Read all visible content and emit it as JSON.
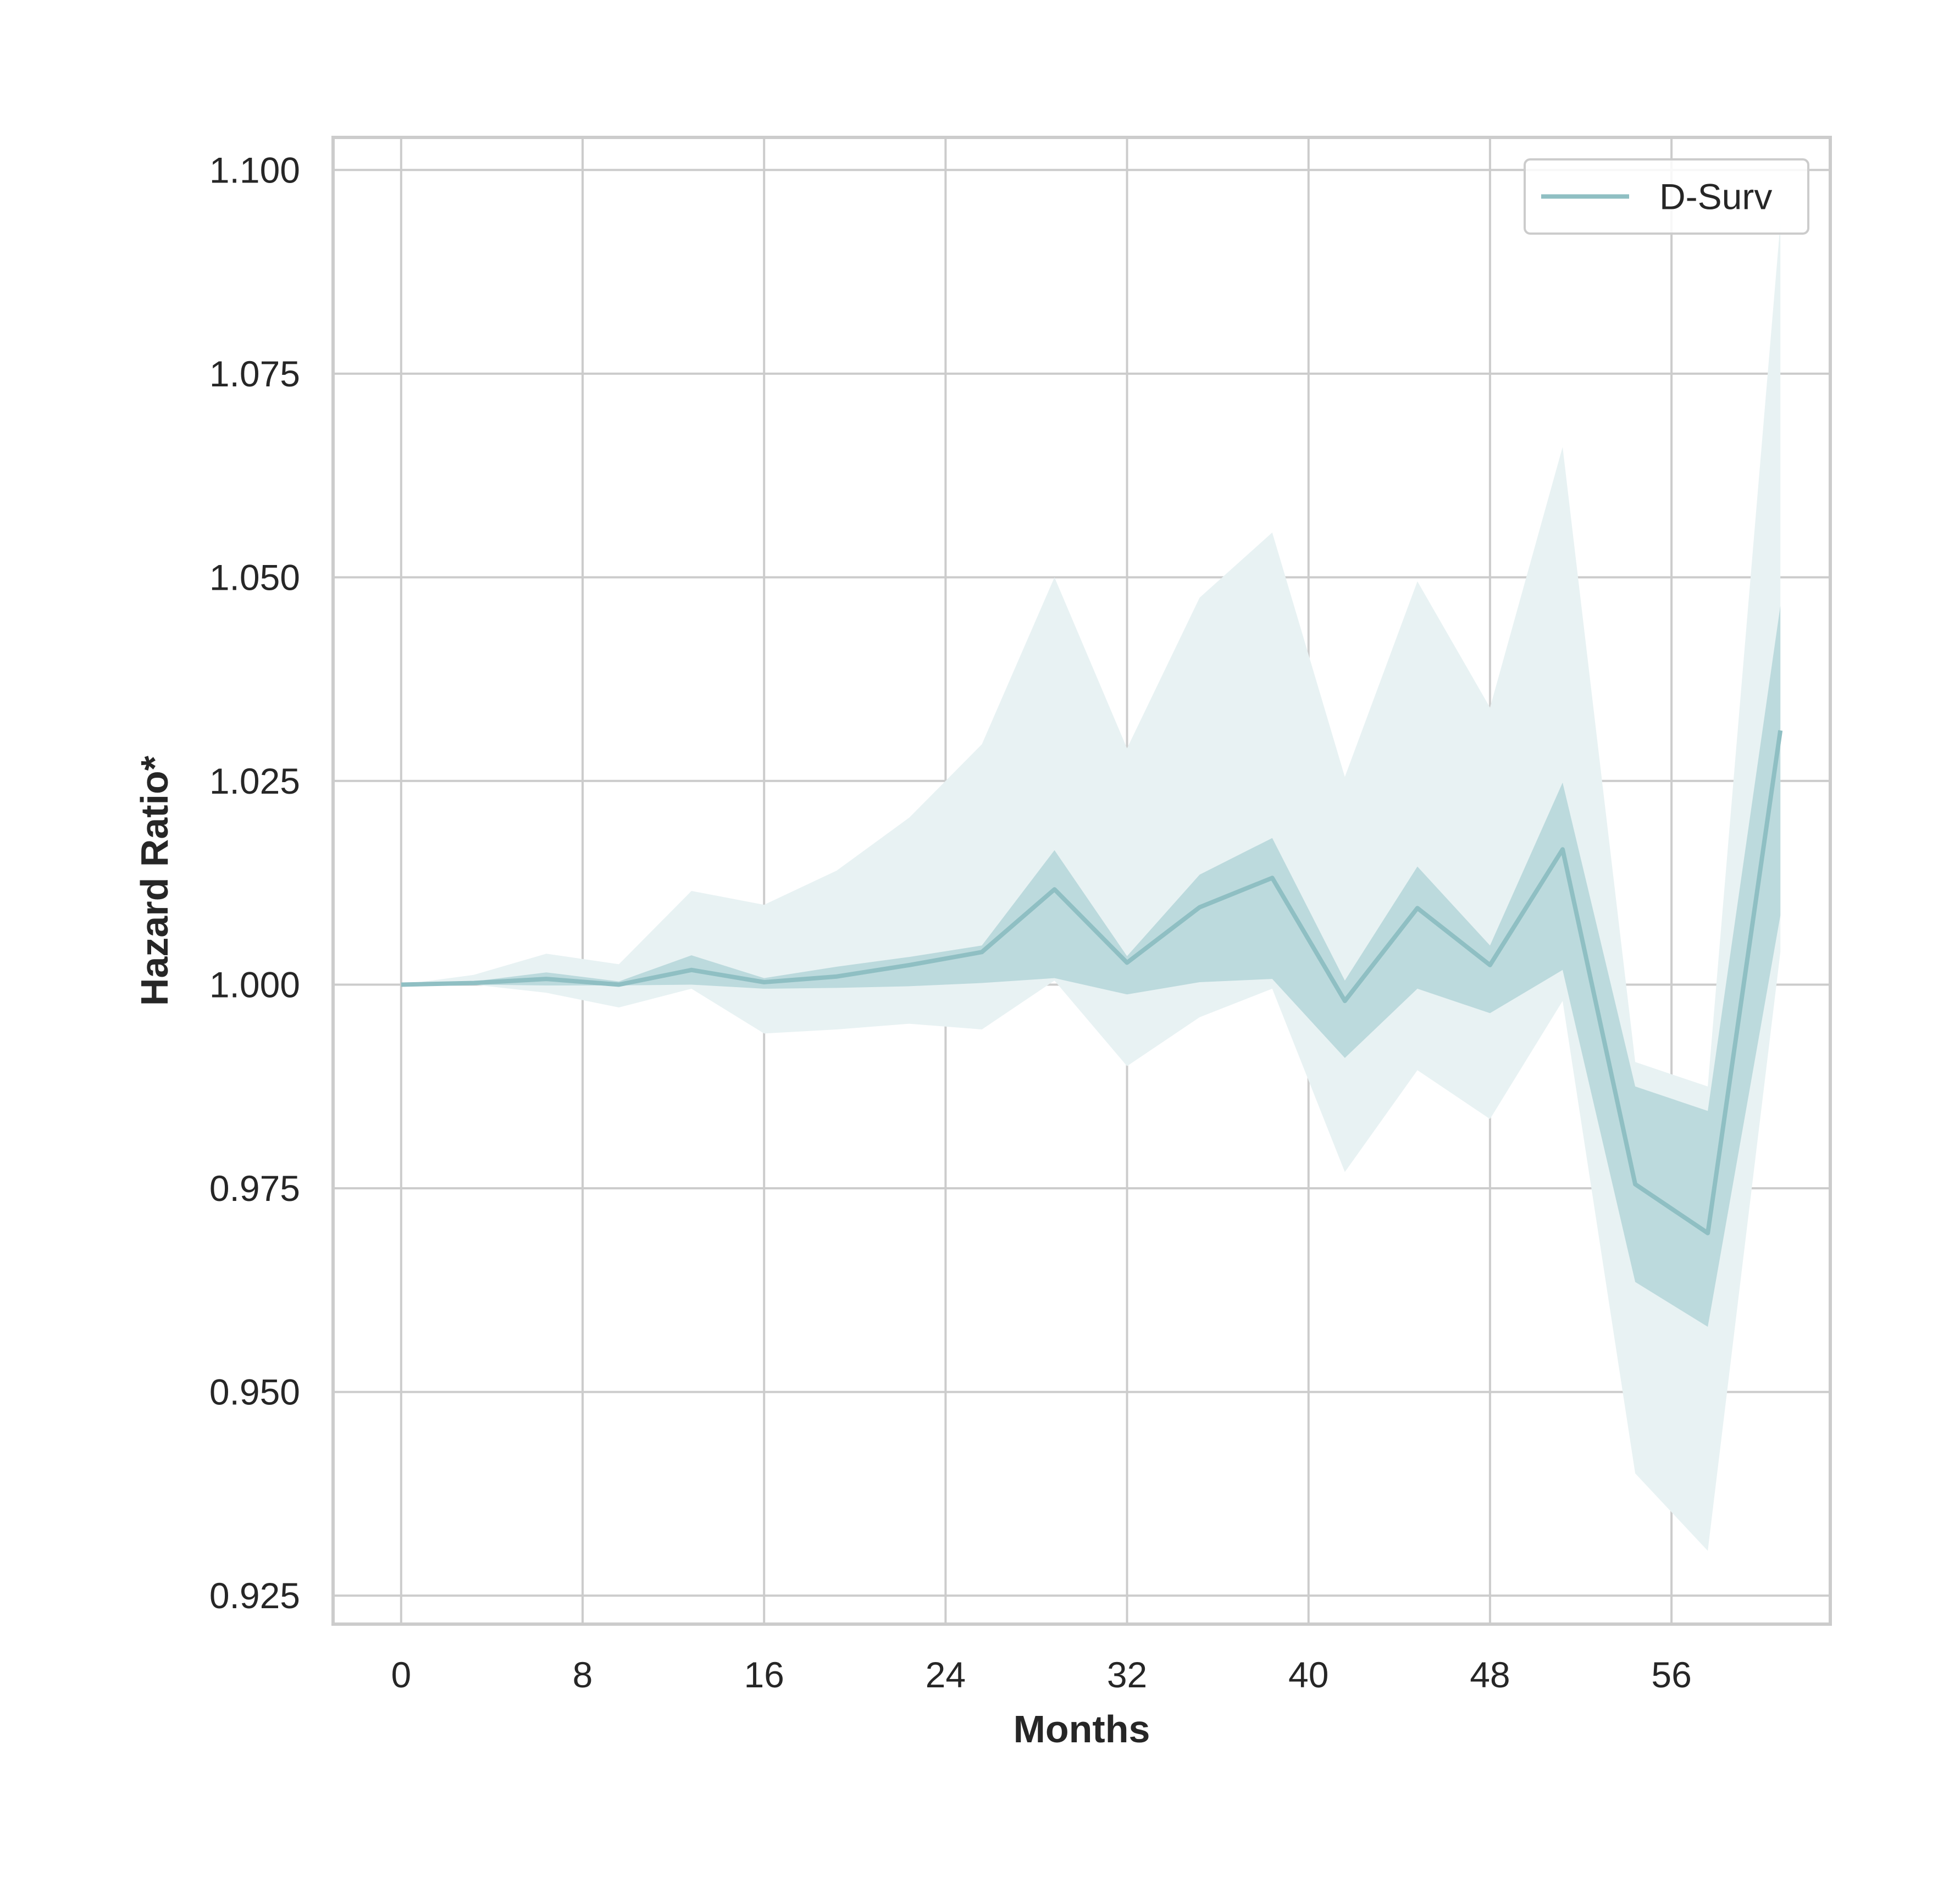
{
  "chart_data": {
    "type": "line",
    "xlabel": "Months",
    "ylabel": "Hazard Ratio*",
    "xlim": [
      -3.0,
      63.0
    ],
    "ylim": [
      0.9215,
      1.104
    ],
    "xticks": [
      0,
      8,
      16,
      24,
      32,
      40,
      48,
      56
    ],
    "yticks": [
      0.925,
      0.95,
      0.975,
      1.0,
      1.025,
      1.05,
      1.075,
      1.1
    ],
    "ytick_labels": [
      "0.925",
      "0.950",
      "0.975",
      "1.000",
      "1.025",
      "1.050",
      "1.075",
      "1.100"
    ],
    "grid": true,
    "legend_position": "top-right",
    "colors": {
      "line": "#8fbfc3",
      "band_inner": "#bcdadd",
      "band_outer": "#e8f2f3",
      "grid": "#cccccc",
      "spine": "#cccccc"
    },
    "series": [
      {
        "name": "D-Surv",
        "x": [
          0,
          3.2,
          6.4,
          9.6,
          12.8,
          16.0,
          19.2,
          22.4,
          25.6,
          28.8,
          32.0,
          35.2,
          38.4,
          41.6,
          44.8,
          48.0,
          51.2,
          54.4,
          57.6,
          60.8
        ],
        "y": [
          1.0,
          1.0002,
          1.0007,
          1.0,
          1.0018,
          1.0003,
          1.001,
          1.0024,
          1.004,
          1.0117,
          1.0027,
          1.0095,
          1.0131,
          0.998,
          1.0094,
          1.0024,
          1.0166,
          0.9755,
          0.9695,
          1.0312
        ],
        "ci_inner_lower": [
          1.0,
          1.0,
          0.9999,
          0.9999,
          1.0,
          0.9995,
          0.9996,
          0.9998,
          1.0002,
          1.0008,
          0.9988,
          1.0003,
          1.0007,
          0.991,
          0.9995,
          0.9965,
          1.0018,
          0.9635,
          0.958,
          1.0085
        ],
        "ci_inner_upper": [
          1.0,
          1.0004,
          1.0015,
          1.0004,
          1.0036,
          1.0008,
          1.0022,
          1.0034,
          1.0048,
          1.0165,
          1.0035,
          1.0135,
          1.018,
          1.0005,
          1.0145,
          1.0048,
          1.0248,
          0.9875,
          0.9845,
          1.0465
        ],
        "ci_outer_lower": [
          1.0,
          1.0,
          0.999,
          0.9972,
          0.9995,
          0.994,
          0.9945,
          0.9952,
          0.9945,
          1.0005,
          0.99,
          0.996,
          0.9995,
          0.977,
          0.9895,
          0.9835,
          0.998,
          0.94,
          0.9305,
          1.004
        ],
        "ci_outer_upper": [
          1.0,
          1.0012,
          1.0038,
          1.0025,
          1.0115,
          1.0098,
          1.014,
          1.0205,
          1.0295,
          1.05,
          1.029,
          1.0475,
          1.0555,
          1.0255,
          1.0495,
          1.034,
          1.066,
          0.9905,
          0.9875,
          1.0935
        ]
      }
    ]
  }
}
